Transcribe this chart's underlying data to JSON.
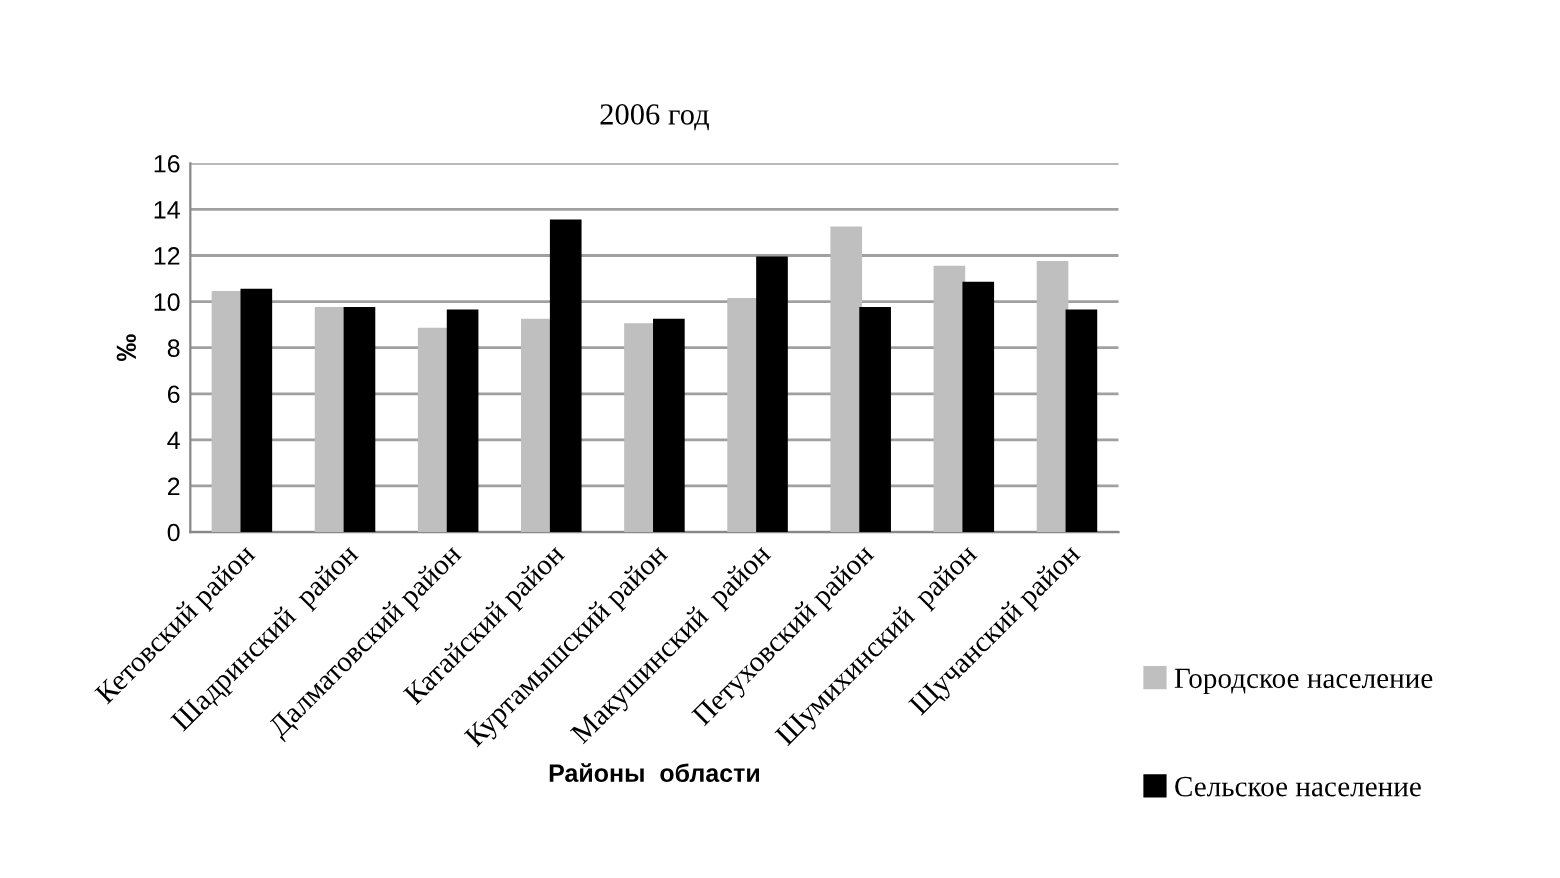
{
  "chart_data": {
    "type": "bar",
    "title": "2006 год",
    "xlabel": "Районы  области",
    "ylabel": "‰",
    "categories": [
      "Кетовский район",
      "Шадринский  район",
      "Далматовский район",
      "Катайский район",
      "Куртамышский район",
      "Макушинский  район",
      "Петуховский район",
      "Шумихинский  район",
      "Щучанский район"
    ],
    "series": [
      {
        "name": "Городское население",
        "color": "#bfbfbf",
        "values": [
          10.4,
          9.7,
          8.8,
          9.2,
          9.0,
          10.1,
          13.2,
          11.5,
          11.7
        ]
      },
      {
        "name": "Сельское население",
        "color": "#000000",
        "values": [
          10.5,
          9.7,
          9.6,
          13.5,
          9.2,
          11.9,
          9.7,
          10.8,
          9.6
        ]
      }
    ],
    "ylim": [
      0,
      16
    ],
    "yticks": [
      0,
      2,
      4,
      6,
      8,
      10,
      12,
      14,
      16
    ],
    "grid": "y",
    "legend": "right"
  }
}
